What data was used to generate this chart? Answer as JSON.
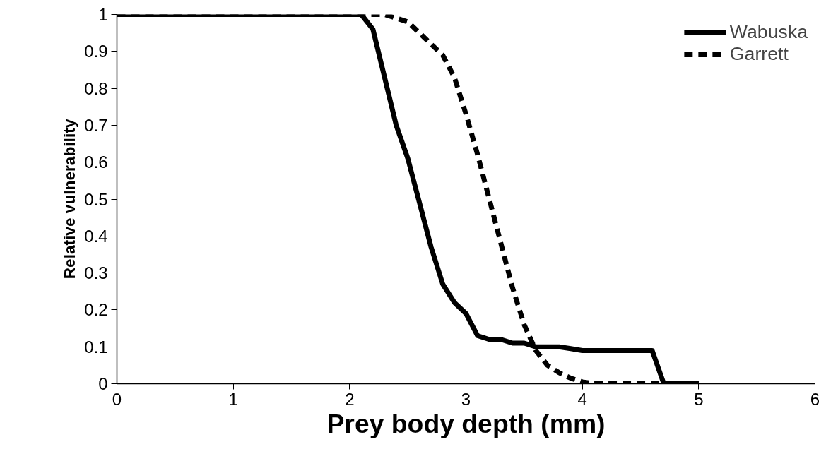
{
  "chart_data": {
    "type": "line",
    "xlabel": "Prey body depth (mm)",
    "ylabel": "Relative vulnerability",
    "xlim": [
      0,
      6
    ],
    "xticks": [
      0,
      1,
      2,
      3,
      4,
      5,
      6
    ],
    "ylim": [
      0,
      1
    ],
    "yticks": [
      0,
      0.1,
      0.2,
      0.3,
      0.4,
      0.5,
      0.6,
      0.7,
      0.8,
      0.9,
      1
    ],
    "grid": false,
    "legend": "top right",
    "series": [
      {
        "name": "Wabuska",
        "color": "#000000",
        "line_style": "solid",
        "x": [
          0,
          2.1,
          2.2,
          2.3,
          2.4,
          2.5,
          2.6,
          2.7,
          2.8,
          2.9,
          3.0,
          3.1,
          3.2,
          3.3,
          3.4,
          3.5,
          3.6,
          3.7,
          3.8,
          3.9,
          4.0,
          4.6,
          4.7,
          5.0
        ],
        "values": [
          1,
          1,
          0.96,
          0.83,
          0.7,
          0.61,
          0.49,
          0.37,
          0.27,
          0.22,
          0.19,
          0.13,
          0.12,
          0.12,
          0.11,
          0.11,
          0.1,
          0.1,
          0.1,
          0.095,
          0.09,
          0.09,
          0,
          0
        ]
      },
      {
        "name": "Garrett",
        "color": "#000000",
        "line_style": "dashed",
        "x": [
          0,
          2.3,
          2.4,
          2.5,
          2.6,
          2.7,
          2.8,
          2.9,
          3.0,
          3.1,
          3.2,
          3.3,
          3.4,
          3.5,
          3.6,
          3.7,
          3.8,
          3.9,
          4.0,
          4.1,
          5.0
        ],
        "values": [
          1,
          1,
          0.99,
          0.98,
          0.95,
          0.92,
          0.89,
          0.83,
          0.73,
          0.62,
          0.5,
          0.38,
          0.26,
          0.16,
          0.09,
          0.05,
          0.03,
          0.015,
          0.005,
          0,
          0
        ]
      }
    ]
  }
}
